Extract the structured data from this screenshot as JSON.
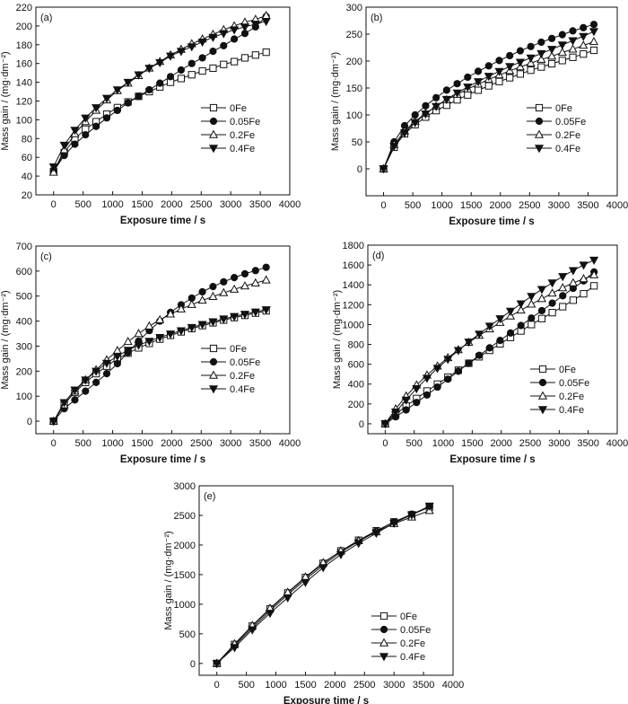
{
  "chart_data": [
    {
      "type": "line",
      "panel_label": "(a)",
      "xlabel": "Exposure time / s",
      "ylabel": "Mass gain / (mg·dm⁻²)",
      "xlim": [
        -300,
        4000
      ],
      "ylim": [
        20,
        220
      ],
      "xticks": [
        0,
        500,
        1000,
        1500,
        2000,
        2500,
        3000,
        3500,
        4000
      ],
      "yticks": [
        20,
        40,
        60,
        80,
        100,
        120,
        140,
        160,
        180,
        200,
        220
      ],
      "x": [
        0,
        180,
        360,
        540,
        720,
        900,
        1080,
        1260,
        1440,
        1620,
        1800,
        1980,
        2160,
        2340,
        2520,
        2700,
        2880,
        3060,
        3240,
        3420,
        3600
      ],
      "legend_position": "center-right",
      "series": [
        {
          "name": "0Fe",
          "marker": "square-open",
          "values": [
            45,
            65,
            80,
            90,
            98,
            106,
            113,
            119,
            125,
            130,
            135,
            140,
            144,
            148,
            152,
            155,
            159,
            162,
            166,
            169,
            172
          ]
        },
        {
          "name": "0.05Fe",
          "marker": "circle-filled",
          "values": [
            45,
            62,
            74,
            84,
            93,
            102,
            110,
            118,
            125,
            132,
            139,
            146,
            153,
            160,
            166,
            173,
            179,
            186,
            192,
            199,
            210
          ]
        },
        {
          "name": "0.2Fe",
          "marker": "triangle-up-open",
          "values": [
            44,
            68,
            85,
            98,
            110,
            121,
            131,
            139,
            147,
            155,
            162,
            169,
            175,
            181,
            186,
            191,
            196,
            200,
            204,
            207,
            211
          ]
        },
        {
          "name": "0.4Fe",
          "marker": "triangle-down-filled",
          "values": [
            50,
            73,
            89,
            102,
            113,
            123,
            132,
            140,
            148,
            155,
            161,
            168,
            173,
            178,
            183,
            188,
            192,
            196,
            199,
            202,
            205
          ]
        }
      ]
    },
    {
      "type": "line",
      "panel_label": "(b)",
      "xlabel": "Exposure time / s",
      "ylabel": "Mass gain / (mg·dm⁻²)",
      "xlim": [
        -300,
        4000
      ],
      "ylim": [
        -50,
        300
      ],
      "xticks": [
        0,
        500,
        1000,
        1500,
        2000,
        2500,
        3000,
        3500,
        4000
      ],
      "yticks": [
        0,
        50,
        100,
        150,
        200,
        250,
        300
      ],
      "x": [
        0,
        180,
        360,
        540,
        720,
        900,
        1080,
        1260,
        1440,
        1620,
        1800,
        1980,
        2160,
        2340,
        2520,
        2700,
        2880,
        3060,
        3240,
        3420,
        3600
      ],
      "legend_position": "center-right",
      "series": [
        {
          "name": "0Fe",
          "marker": "square-open",
          "values": [
            0,
            40,
            65,
            82,
            96,
            108,
            118,
            128,
            137,
            146,
            154,
            162,
            169,
            176,
            183,
            189,
            195,
            201,
            207,
            213,
            220
          ]
        },
        {
          "name": "0.05Fe",
          "marker": "circle-filled",
          "values": [
            0,
            50,
            80,
            100,
            117,
            132,
            146,
            158,
            170,
            181,
            191,
            201,
            210,
            219,
            227,
            235,
            242,
            249,
            256,
            262,
            268
          ]
        },
        {
          "name": "0.2Fe",
          "marker": "triangle-up-open",
          "values": [
            0,
            45,
            70,
            88,
            103,
            116,
            128,
            138,
            148,
            157,
            166,
            174,
            182,
            189,
            196,
            203,
            209,
            216,
            222,
            229,
            236
          ]
        },
        {
          "name": "0.4Fe",
          "marker": "triangle-down-filled",
          "values": [
            0,
            42,
            67,
            86,
            102,
            116,
            129,
            141,
            152,
            162,
            172,
            181,
            190,
            198,
            206,
            214,
            222,
            230,
            238,
            246,
            255
          ]
        }
      ]
    },
    {
      "type": "line",
      "panel_label": "(c)",
      "xlabel": "Exposure time / s",
      "ylabel": "Mass gain / (mg·dm⁻²)",
      "xlim": [
        -300,
        4000
      ],
      "ylim": [
        -50,
        700
      ],
      "xticks": [
        0,
        500,
        1000,
        1500,
        2000,
        2500,
        3000,
        3500,
        4000
      ],
      "yticks": [
        0,
        100,
        200,
        300,
        400,
        500,
        600,
        700
      ],
      "x": [
        0,
        180,
        360,
        540,
        720,
        900,
        1080,
        1260,
        1440,
        1620,
        1800,
        1980,
        2160,
        2340,
        2520,
        2700,
        2880,
        3060,
        3240,
        3420,
        3600
      ],
      "legend_position": "center-right",
      "series": [
        {
          "name": "0Fe",
          "marker": "square-open",
          "values": [
            0,
            70,
            115,
            155,
            190,
            220,
            250,
            272,
            293,
            311,
            328,
            343,
            357,
            370,
            382,
            393,
            404,
            414,
            423,
            432,
            441
          ]
        },
        {
          "name": "0.05Fe",
          "marker": "circle-filled",
          "values": [
            0,
            50,
            85,
            120,
            155,
            190,
            230,
            275,
            320,
            362,
            400,
            435,
            465,
            492,
            517,
            538,
            557,
            574,
            589,
            602,
            615
          ]
        },
        {
          "name": "0.2Fe",
          "marker": "triangle-up-open",
          "values": [
            0,
            65,
            120,
            165,
            205,
            245,
            282,
            318,
            350,
            380,
            405,
            428,
            448,
            466,
            483,
            498,
            513,
            527,
            540,
            552,
            564
          ]
        },
        {
          "name": "0.4Fe",
          "marker": "triangle-down-filled",
          "values": [
            0,
            75,
            125,
            165,
            200,
            232,
            260,
            284,
            304,
            320,
            335,
            349,
            362,
            375,
            387,
            398,
            409,
            419,
            428,
            437,
            446
          ]
        }
      ]
    },
    {
      "type": "line",
      "panel_label": "(d)",
      "xlabel": "Exposure time / s",
      "ylabel": "Mass gain / (mg·dm⁻²)",
      "xlim": [
        -300,
        4000
      ],
      "ylim": [
        -100,
        1800
      ],
      "xticks": [
        0,
        500,
        1000,
        1500,
        2000,
        2500,
        3000,
        3500,
        4000
      ],
      "yticks": [
        0,
        200,
        400,
        600,
        800,
        1000,
        1200,
        1400,
        1600,
        1800
      ],
      "x": [
        0,
        180,
        360,
        540,
        720,
        900,
        1080,
        1260,
        1440,
        1620,
        1800,
        1980,
        2160,
        2340,
        2520,
        2700,
        2880,
        3060,
        3240,
        3420,
        3600
      ],
      "legend_position": "lower-right",
      "series": [
        {
          "name": "0Fe",
          "marker": "square-open",
          "values": [
            0,
            95,
            180,
            255,
            330,
            400,
            470,
            540,
            610,
            675,
            740,
            805,
            870,
            935,
            1000,
            1060,
            1120,
            1180,
            1245,
            1310,
            1390
          ]
        },
        {
          "name": "0.05Fe",
          "marker": "circle-filled",
          "values": [
            0,
            70,
            140,
            215,
            290,
            370,
            450,
            530,
            610,
            690,
            765,
            840,
            915,
            990,
            1065,
            1140,
            1215,
            1290,
            1365,
            1440,
            1530
          ]
        },
        {
          "name": "0.2Fe",
          "marker": "triangle-up-open",
          "values": [
            0,
            150,
            280,
            390,
            490,
            580,
            665,
            745,
            820,
            890,
            955,
            1020,
            1085,
            1145,
            1205,
            1260,
            1315,
            1370,
            1420,
            1460,
            1500
          ]
        },
        {
          "name": "0.4Fe",
          "marker": "triangle-down-filled",
          "values": [
            0,
            120,
            240,
            355,
            460,
            560,
            650,
            740,
            825,
            905,
            985,
            1060,
            1135,
            1210,
            1285,
            1355,
            1420,
            1485,
            1545,
            1600,
            1650
          ]
        }
      ]
    },
    {
      "type": "line",
      "panel_label": "(e)",
      "xlabel": "Exposure time / s",
      "ylabel": "Mass gain / (mg·dm⁻²)",
      "xlim": [
        -300,
        4000
      ],
      "ylim": [
        -200,
        3000
      ],
      "xticks": [
        0,
        500,
        1000,
        1500,
        2000,
        2500,
        3000,
        3500,
        4000
      ],
      "yticks": [
        0,
        500,
        1000,
        1500,
        2000,
        2500,
        3000
      ],
      "x": [
        0,
        300,
        600,
        900,
        1200,
        1500,
        1800,
        2100,
        2400,
        2700,
        3000,
        3300,
        3600
      ],
      "legend_position": "lower-right",
      "series": [
        {
          "name": "0Fe",
          "marker": "square-open",
          "values": [
            0,
            320,
            630,
            920,
            1190,
            1450,
            1690,
            1900,
            2080,
            2240,
            2390,
            2510,
            2640
          ]
        },
        {
          "name": "0.05Fe",
          "marker": "circle-filled",
          "values": [
            0,
            300,
            600,
            890,
            1160,
            1420,
            1660,
            1880,
            2060,
            2230,
            2390,
            2520,
            2650
          ]
        },
        {
          "name": "0.2Fe",
          "marker": "triangle-up-open",
          "values": [
            0,
            330,
            640,
            930,
            1200,
            1460,
            1700,
            1900,
            2070,
            2220,
            2360,
            2470,
            2580
          ]
        },
        {
          "name": "0.4Fe",
          "marker": "triangle-down-filled",
          "values": [
            0,
            270,
            570,
            850,
            1110,
            1370,
            1620,
            1840,
            2030,
            2200,
            2370,
            2510,
            2660
          ]
        }
      ]
    }
  ]
}
